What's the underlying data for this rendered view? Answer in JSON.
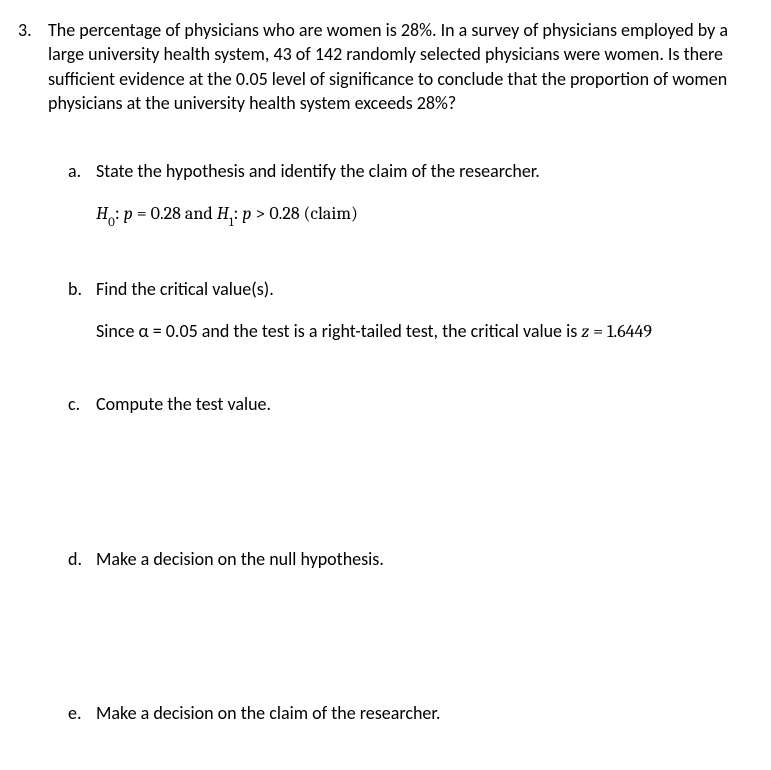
{
  "problem": {
    "number": "3.",
    "stem": "The percentage of physicians who are women is 28%. In a survey of physicians employed by a large university health system, 43 of 142 randomly selected physicians were women. Is there sufficient evidence at the 0.05 level of significance to conclude that the proportion of women physicians at the university health system exceeds 28%?"
  },
  "parts": {
    "a": {
      "letter": "a.",
      "prompt": "State the hypothesis and identify the claim of the researcher.",
      "answer": {
        "H0_sym": "H",
        "H0_sub": "0",
        "colon1": ": ",
        "p1": "p",
        "eq": " = 0.28 and ",
        "H1_sym": "H",
        "H1_sub": "1",
        "colon2": ": ",
        "p2": "p",
        "gt": " > 0.28 (claim)"
      }
    },
    "b": {
      "letter": "b.",
      "prompt": "Find the critical value(s).",
      "answer": {
        "pre": "Since α = 0.05 and the test is a right-tailed test, the critical value is ",
        "z": "z",
        "post": " = 1.6449"
      }
    },
    "c": {
      "letter": "c.",
      "prompt": "Compute the test value."
    },
    "d": {
      "letter": "d.",
      "prompt": "Make a decision on the null hypothesis."
    },
    "e": {
      "letter": "e.",
      "prompt": "Make a decision on the claim of the researcher."
    }
  }
}
